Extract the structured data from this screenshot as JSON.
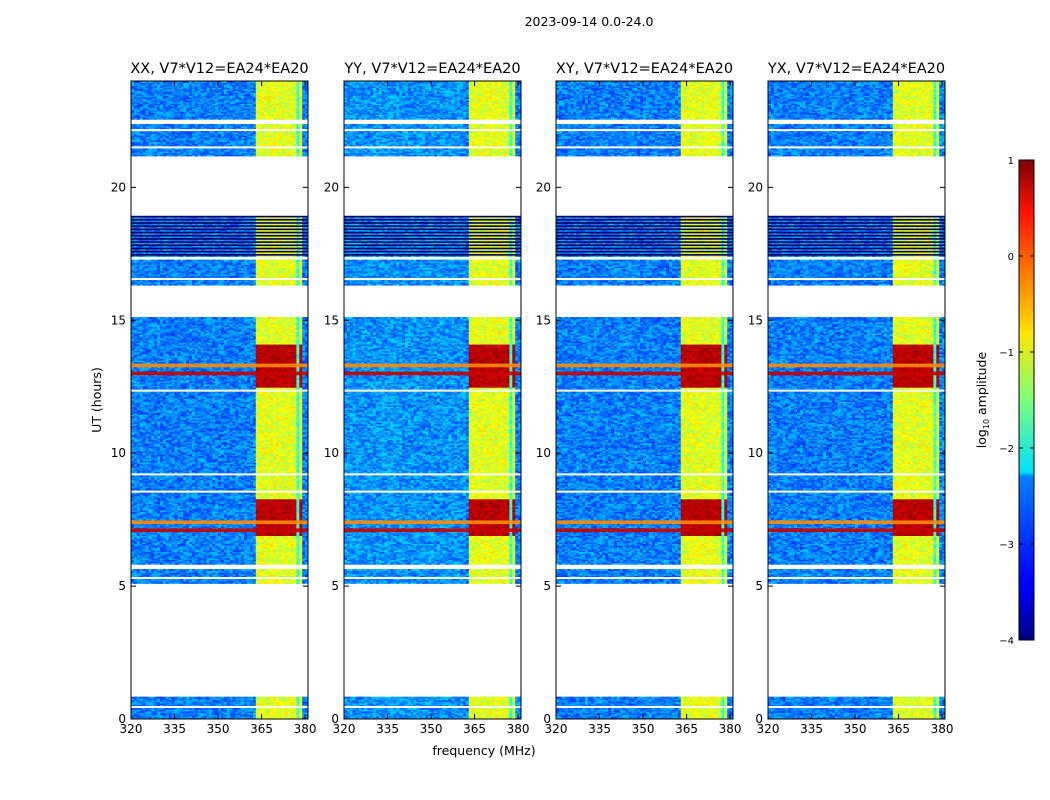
{
  "chart_data": {
    "type": "heatmap",
    "suptitle": "2023-09-14 0.0-24.0",
    "xlabel": "frequency (MHz)",
    "ylabel": "UT (hours)",
    "xlim": [
      320,
      381
    ],
    "ylim": [
      0,
      24
    ],
    "xticks": [
      320,
      335,
      350,
      365,
      380
    ],
    "yticks": [
      0,
      5,
      10,
      15,
      20
    ],
    "colorbar": {
      "label": "log10 amplitude",
      "label_main": "log",
      "label_sub": "10",
      "label_rest": " amplitude",
      "range": [
        -4,
        1
      ],
      "ticks": [
        1,
        0,
        -1,
        -2,
        -3,
        -4
      ],
      "tick_labels": [
        "1",
        "0",
        "−1",
        "−2",
        "−3",
        "−4"
      ],
      "colormap": "jet"
    },
    "panels": [
      {
        "title": "XX, V7*V12=EA24*EA20",
        "pol": "XX",
        "baseline": "V7*V12=EA24*EA20"
      },
      {
        "title": "YY, V7*V12=EA24*EA20",
        "pol": "YY",
        "baseline": "V7*V12=EA24*EA20"
      },
      {
        "title": "XY, V7*V12=EA24*EA20",
        "pol": "XY",
        "baseline": "V7*V12=EA24*EA20"
      },
      {
        "title": "YX, V7*V12=EA24*EA20",
        "pol": "YX",
        "baseline": "V7*V12=EA24*EA20"
      }
    ],
    "data_time_ranges_hours": [
      [
        0.0,
        0.85
      ],
      [
        5.1,
        5.65
      ],
      [
        5.8,
        15.1
      ],
      [
        16.3,
        17.3
      ],
      [
        17.4,
        18.9
      ],
      [
        21.2,
        22.4
      ],
      [
        22.55,
        24.0
      ]
    ],
    "flagged_gaps_hours": [
      [
        0.85,
        5.1
      ],
      [
        15.1,
        16.3
      ],
      [
        18.9,
        21.2
      ]
    ],
    "strong_channel_band_mhz": [
      363.5,
      379.0
    ],
    "channel_blocks_mhz": [
      [
        363.5,
        367.5
      ],
      [
        368.5,
        372.5
      ],
      [
        373.5,
        377.0
      ],
      [
        377.8,
        379.0
      ]
    ],
    "high_power_time_ranges_hours": [
      [
        6.9,
        8.3
      ],
      [
        12.5,
        14.1
      ]
    ],
    "strong_rfi_rows_hours": [
      7.1,
      7.4,
      13.0,
      13.3
    ]
  }
}
